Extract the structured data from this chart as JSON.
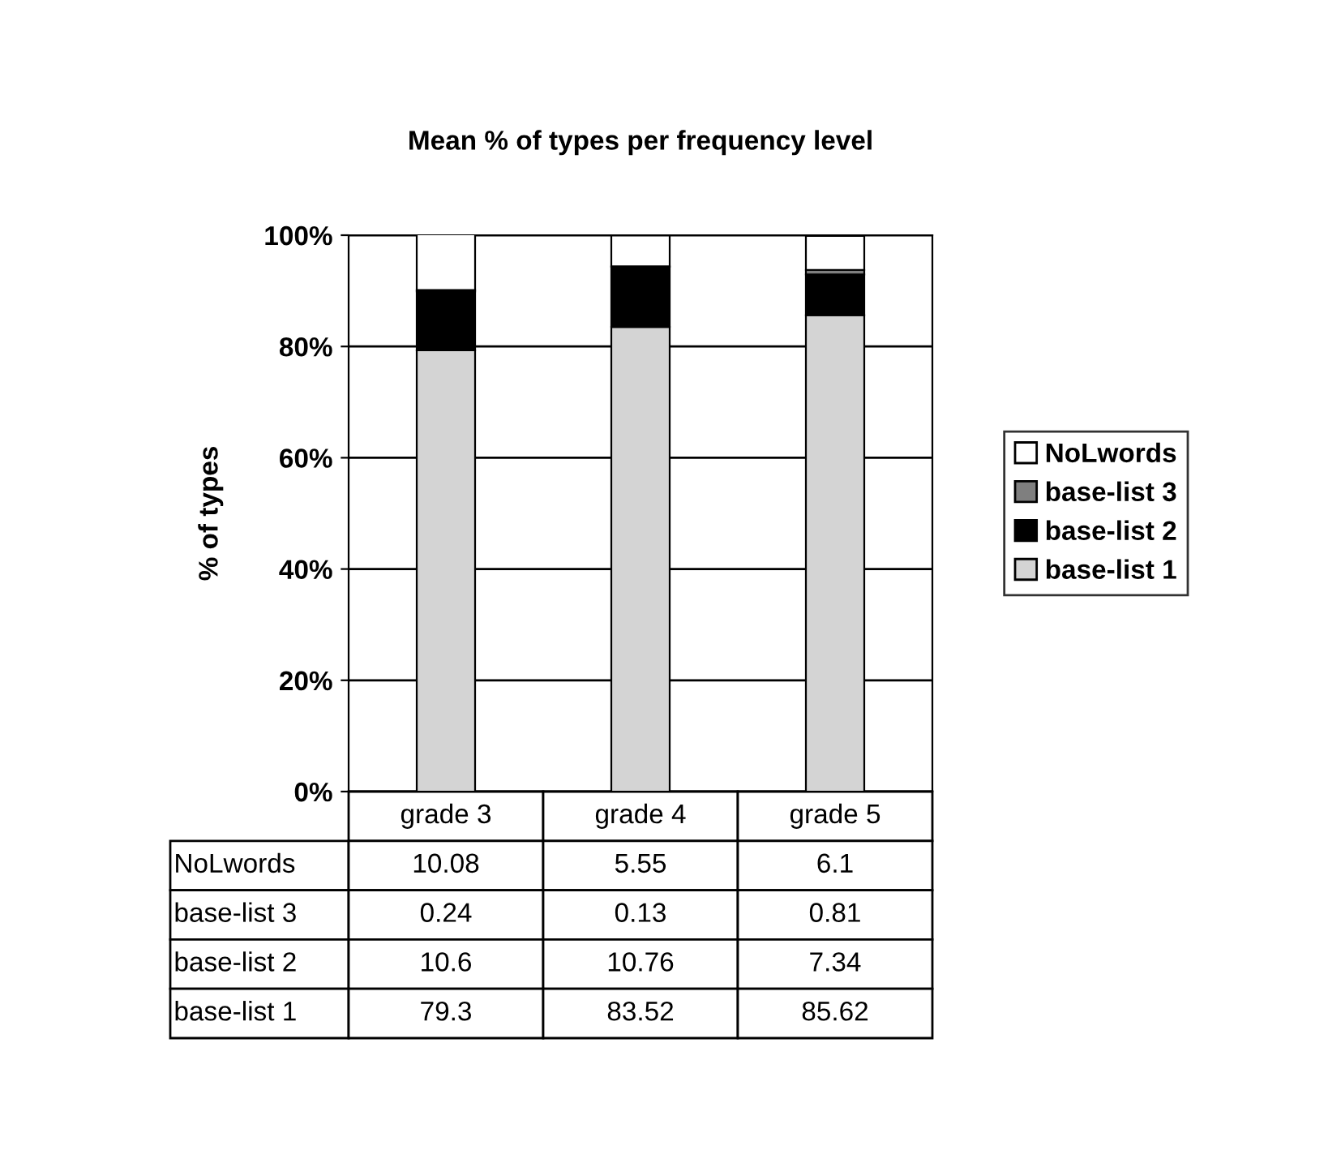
{
  "chart_data": {
    "type": "bar",
    "title": "Mean % of types per frequency level",
    "ylabel": "% of types",
    "categories": [
      "grade 3",
      "grade 4",
      "grade 5"
    ],
    "series": [
      {
        "name": "base-list 1",
        "color": "#d4d4d4",
        "values": [
          79.3,
          83.52,
          85.62
        ]
      },
      {
        "name": "base-list 2",
        "color": "#000000",
        "values": [
          10.6,
          10.76,
          7.34
        ]
      },
      {
        "name": "base-list 3",
        "color": "#7f7f7f",
        "values": [
          0.24,
          0.13,
          0.81
        ]
      },
      {
        "name": "NoLwords",
        "color": "#ffffff",
        "values": [
          10.08,
          5.55,
          6.1
        ]
      }
    ],
    "stacked": true,
    "ylim": [
      0,
      100
    ],
    "yticks": [
      {
        "value": 0,
        "label": "0%"
      },
      {
        "value": 20,
        "label": "20%"
      },
      {
        "value": 40,
        "label": "40%"
      },
      {
        "value": 60,
        "label": "60%"
      },
      {
        "value": 80,
        "label": "80%"
      },
      {
        "value": 100,
        "label": "100%"
      }
    ],
    "grid": "y",
    "legend": "right",
    "data_labels": true
  }
}
